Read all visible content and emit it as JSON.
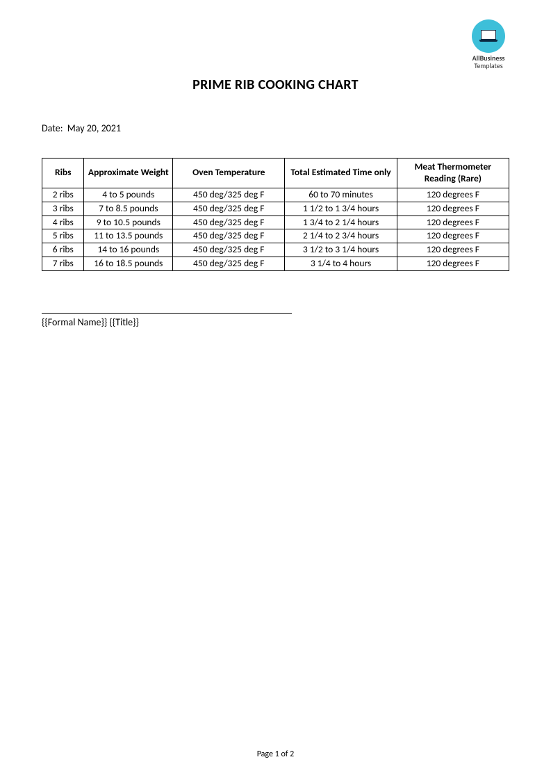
{
  "logo": {
    "line1": "AllBusiness",
    "line2": "Templates",
    "icon_bg": "#3dbfd9",
    "laptop_color": "#0a2840"
  },
  "title": "PRIME RIB COOKING CHART",
  "date": {
    "label": "Date:",
    "value": "May 20, 2021"
  },
  "table": {
    "columns": [
      "Ribs",
      "Approximate Weight",
      "Oven Temperature",
      "Total Estimated Time only",
      "Meat Thermometer Reading (Rare)"
    ],
    "rows": [
      [
        "2 ribs",
        "4 to 5 pounds",
        "450 deg/325 deg F",
        "60 to 70 minutes",
        "120 degrees F"
      ],
      [
        "3 ribs",
        "7 to 8.5 pounds",
        "450 deg/325 deg F",
        "1 1/2 to 1 3/4 hours",
        "120 degrees F"
      ],
      [
        "4 ribs",
        "9 to 10.5 pounds",
        "450 deg/325 deg F",
        "1 3/4 to 2 1/4 hours",
        "120 degrees F"
      ],
      [
        "5 ribs",
        "11 to 13.5 pounds",
        "450 deg/325 deg F",
        "2 1/4 to 2 3/4 hours",
        "120 degrees F"
      ],
      [
        "6 ribs",
        "14 to 16 pounds",
        "450 deg/325 deg F",
        "3 1/2 to 3 1/4 hours",
        "120 degrees F"
      ],
      [
        "7 ribs",
        "16 to 18.5 pounds",
        "450 deg/325 deg F",
        "3 1/4 to 4  hours",
        "120 degrees F"
      ]
    ]
  },
  "signature": "{{Formal Name}} {{Title}}",
  "footer": "Page 1 of 2"
}
